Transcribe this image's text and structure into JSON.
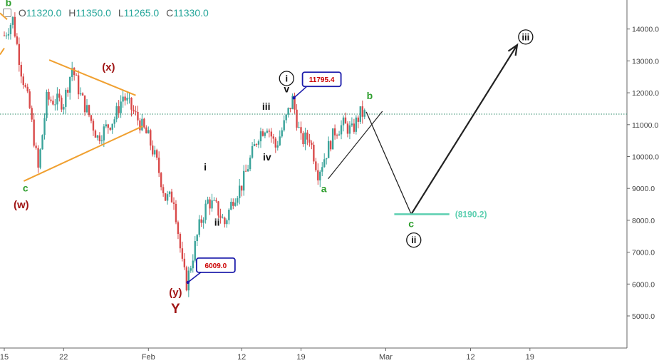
{
  "header": {
    "ohlc": [
      {
        "key": "O",
        "value": "11320.0"
      },
      {
        "key": "H",
        "value": "11350.0"
      },
      {
        "key": "L",
        "value": "11265.0"
      },
      {
        "key": "C",
        "value": "11330.0"
      }
    ]
  },
  "chart_data": {
    "type": "candlestick",
    "y_axis": {
      "ticks": [
        5000,
        6000,
        7000,
        8000,
        9000,
        10000,
        11000,
        12000,
        13000,
        14000
      ],
      "tick_labels": [
        "5000.0",
        "6000.0",
        "7000.0",
        "8000.0",
        "9000.0",
        "10000.0",
        "11000.0",
        "12000.0",
        "13000.0",
        "14000.0"
      ],
      "position": "right"
    },
    "x_axis": {
      "ticks": [
        "15",
        "22",
        "Feb",
        "12",
        "19",
        "Mar",
        "12",
        "19"
      ],
      "ticks_day": [
        0,
        7,
        17,
        28,
        35,
        45,
        55,
        62
      ]
    },
    "current_price": 11330,
    "price_path": [
      [
        0,
        13800
      ],
      [
        1,
        14300
      ],
      [
        2,
        12700
      ],
      [
        3,
        11500
      ],
      [
        4,
        9600
      ],
      [
        5,
        11800
      ],
      [
        7,
        11700
      ],
      [
        8,
        12800
      ],
      [
        9,
        11900
      ],
      [
        10,
        11300
      ],
      [
        11,
        10600
      ],
      [
        13,
        11200
      ],
      [
        14,
        11900
      ],
      [
        15,
        11500
      ],
      [
        17,
        10600
      ],
      [
        18,
        9800
      ],
      [
        19,
        8700
      ],
      [
        20,
        8700
      ],
      [
        21,
        6600
      ],
      [
        21.5,
        6009
      ],
      [
        23,
        7800
      ],
      [
        24,
        8600
      ],
      [
        25,
        8400
      ],
      [
        26,
        7900
      ],
      [
        27,
        8700
      ],
      [
        28,
        9100
      ],
      [
        30,
        10700
      ],
      [
        31,
        11000
      ],
      [
        32,
        10300
      ],
      [
        33,
        11000
      ],
      [
        34,
        11795
      ],
      [
        35,
        10500
      ],
      [
        36,
        10600
      ],
      [
        37,
        9500
      ],
      [
        37.5,
        9800
      ],
      [
        39,
        10800
      ],
      [
        40,
        11000
      ],
      [
        41,
        10800
      ],
      [
        42,
        11350
      ],
      [
        42.5,
        11330
      ]
    ],
    "price_labels": [
      {
        "text": "11795.4",
        "day": 34,
        "price": 11795.4
      },
      {
        "text": "6009.0",
        "day": 21.5,
        "price": 6009
      }
    ],
    "wave_labels": [
      {
        "text": "b",
        "day": 0.5,
        "price": 14720,
        "color": "#2e9e2e",
        "size": 14
      },
      {
        "text": "c",
        "day": 2.5,
        "price": 8900,
        "color": "#2e9e2e",
        "size": 14
      },
      {
        "text": "(w)",
        "day": 2,
        "price": 8380,
        "color": "#a01515",
        "size": 15
      },
      {
        "text": "(x)",
        "day": 12.3,
        "price": 12700,
        "color": "#a01515",
        "size": 15
      },
      {
        "text": "(y)",
        "day": 20.2,
        "price": 5630,
        "color": "#a01515",
        "size": 15
      },
      {
        "text": "Y",
        "day": 20.2,
        "price": 5090,
        "color": "#a01515",
        "size": 19
      },
      {
        "text": "i",
        "day": 23.7,
        "price": 9560,
        "color": "#111111",
        "size": 14
      },
      {
        "text": "ii",
        "day": 25.1,
        "price": 7830,
        "color": "#111111",
        "size": 14
      },
      {
        "text": "iii",
        "day": 30.9,
        "price": 11470,
        "color": "#111111",
        "size": 14
      },
      {
        "text": "iv",
        "day": 31.0,
        "price": 9880,
        "color": "#111111",
        "size": 14
      },
      {
        "text": "v",
        "day": 33.3,
        "price": 12010,
        "color": "#111111",
        "size": 14
      },
      {
        "text": "a",
        "day": 37.7,
        "price": 8880,
        "color": "#2e9e2e",
        "size": 14
      },
      {
        "text": "b",
        "day": 43.1,
        "price": 11800,
        "color": "#2e9e2e",
        "size": 14
      },
      {
        "text": "c",
        "day": 48.0,
        "price": 7790,
        "color": "#2e9e2e",
        "size": 14
      }
    ],
    "circled_labels": [
      {
        "text": "i",
        "day": 33.3,
        "price": 12450
      },
      {
        "text": "ii",
        "day": 48.3,
        "price": 7380
      },
      {
        "text": "iii",
        "day": 61.5,
        "price": 13750
      }
    ],
    "target": {
      "label": "(8190.2)",
      "price": 8190.2,
      "day_start": 46,
      "day_end": 52.5,
      "color": "#5ccfb0"
    },
    "projection": [
      [
        42.7,
        11400
      ],
      [
        48,
        8190
      ],
      [
        60.5,
        13500
      ]
    ],
    "triangle_lines": [
      {
        "from": [
          5.3,
          13030
        ],
        "to": [
          15.5,
          11920
        ]
      },
      {
        "from": [
          2.3,
          9230
        ],
        "to": [
          16.3,
          10950
        ]
      }
    ],
    "channel_line": {
      "from": [
        38.2,
        9300
      ],
      "to": [
        44.6,
        11420
      ]
    },
    "colors": {
      "up": "#3aa39a",
      "down": "#d94a4a",
      "triangle": "#f0a030",
      "projection": "#222222",
      "price_line": "#2e8b6a",
      "label_box": "#1a1aaa"
    }
  }
}
